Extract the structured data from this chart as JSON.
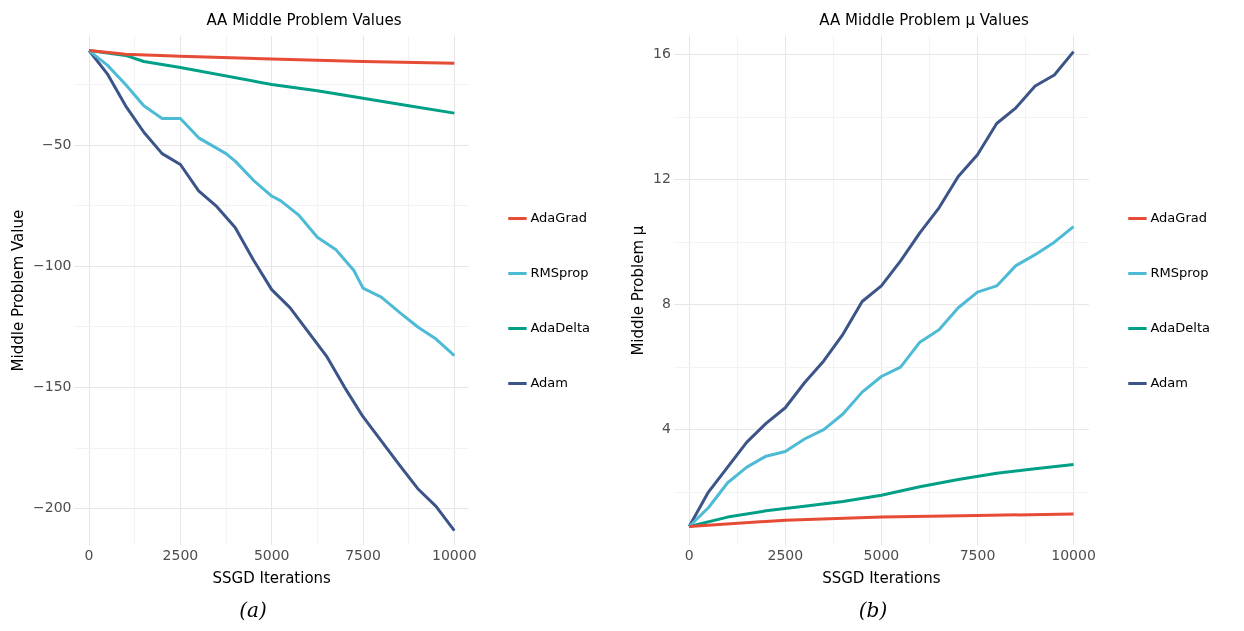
{
  "chart_data": [
    {
      "type": "line",
      "title": "AA Middle Problem Values",
      "xlabel": "SSGD Iterations",
      "ylabel": "Middle Problem Value",
      "annotations": [
        "(a)"
      ],
      "legend": "right",
      "grid": true,
      "xlim": [
        -400,
        10400
      ],
      "xticks": [
        0,
        {
          "value": 1250,
          "label": null
        },
        2500,
        {
          "value": 3750,
          "label": null
        },
        5000,
        {
          "value": 6250,
          "label": null
        },
        7500,
        {
          "value": 8750,
          "label": null
        },
        10000
      ],
      "ylim": [
        -215,
        -5
      ],
      "yticks": [
        {
          "value": -200,
          "label": "−200"
        },
        {
          "value": -175,
          "label": null
        },
        {
          "value": -150,
          "label": "−150"
        },
        {
          "value": -125,
          "label": null
        },
        {
          "value": -100,
          "label": "−100"
        },
        {
          "value": -75,
          "label": null
        },
        {
          "value": -50,
          "label": "−50"
        },
        {
          "value": -25,
          "label": null
        }
      ],
      "series": [
        {
          "name": "AdaGrad",
          "color": "#e64b35",
          "x": [
            0,
            1000,
            2500,
            5000,
            7500,
            10000
          ],
          "values": [
            -11,
            -12.5,
            -13.3,
            -14.5,
            -15.5,
            -16.2
          ]
        },
        {
          "name": "RMSprop",
          "color": "#4dbbd5",
          "x": [
            0,
            500,
            1000,
            1500,
            2000,
            2500,
            3000,
            3750,
            4000,
            4500,
            5000,
            5250,
            5750,
            6250,
            6750,
            7250,
            7500,
            8000,
            8500,
            9000,
            9500,
            10000
          ],
          "values": [
            -11,
            -17,
            -25,
            -33.8,
            -39,
            -39,
            -47,
            -53.5,
            -56.6,
            -64.5,
            -71,
            -73,
            -79,
            -88,
            -93,
            -101.7,
            -109,
            -112.7,
            -119,
            -125,
            -130,
            -136.8
          ]
        },
        {
          "name": "AdaDelta",
          "color": "#00a087",
          "x": [
            0,
            1000,
            1500,
            2500,
            5000,
            6250,
            7500,
            8750,
            10000
          ],
          "values": [
            -11,
            -13,
            -15.5,
            -18,
            -25,
            -27.6,
            -30.7,
            -33.8,
            -36.8
          ]
        },
        {
          "name": "Adam",
          "color": "#3c5488",
          "x": [
            0,
            500,
            1000,
            1500,
            2000,
            2500,
            3000,
            3500,
            4000,
            4500,
            5000,
            5500,
            6000,
            6500,
            7000,
            7500,
            8000,
            8500,
            9000,
            9500,
            10000
          ],
          "values": [
            -11,
            -20.6,
            -33.8,
            -44.7,
            -53.5,
            -58,
            -68.9,
            -75.4,
            -84,
            -97.4,
            -109.6,
            -117,
            -127,
            -137,
            -150,
            -162,
            -172,
            -182,
            -191.7,
            -199,
            -209
          ]
        }
      ]
    },
    {
      "type": "line",
      "title": "AA Middle Problem μ Values",
      "xlabel": "SSGD Iterations",
      "ylabel": "Middle Problem μ",
      "annotations": [
        "(b)"
      ],
      "legend": "right",
      "grid": true,
      "xlim": [
        -400,
        10400
      ],
      "xticks": [
        0,
        {
          "value": 1250,
          "label": null
        },
        2500,
        {
          "value": 3750,
          "label": null
        },
        5000,
        {
          "value": 6250,
          "label": null
        },
        7500,
        {
          "value": 8750,
          "label": null
        },
        10000
      ],
      "ylim": [
        0.3,
        16.6
      ],
      "yticks": [
        {
          "value": 2,
          "label": null
        },
        4,
        {
          "value": 6,
          "label": null
        },
        8,
        {
          "value": 10,
          "label": null
        },
        12,
        {
          "value": 14,
          "label": null
        },
        16
      ],
      "series": [
        {
          "name": "AdaGrad",
          "color": "#e64b35",
          "x": [
            0,
            2500,
            5000,
            7500,
            10000
          ],
          "values": [
            0.9,
            1.1,
            1.2,
            1.25,
            1.3
          ]
        },
        {
          "name": "RMSprop",
          "color": "#4dbbd5",
          "x": [
            0,
            500,
            1000,
            1500,
            2000,
            2500,
            3000,
            3500,
            4000,
            4500,
            5000,
            5500,
            6000,
            6500,
            7000,
            7500,
            8000,
            8500,
            9000,
            9500,
            10000
          ],
          "values": [
            0.9,
            1.5,
            2.3,
            2.8,
            3.15,
            3.3,
            3.7,
            4.0,
            4.5,
            5.2,
            5.7,
            6.0,
            6.8,
            7.2,
            7.9,
            8.4,
            8.6,
            9.25,
            9.6,
            10.0,
            10.5
          ]
        },
        {
          "name": "AdaDelta",
          "color": "#00a087",
          "x": [
            0,
            1000,
            2000,
            3000,
            4000,
            5000,
            6000,
            7000,
            8000,
            9000,
            10000
          ],
          "values": [
            0.9,
            1.2,
            1.4,
            1.55,
            1.7,
            1.9,
            2.17,
            2.4,
            2.6,
            2.75,
            2.88
          ]
        },
        {
          "name": "Adam",
          "color": "#3c5488",
          "x": [
            0,
            500,
            1000,
            1500,
            2000,
            2500,
            3000,
            3500,
            4000,
            4500,
            5000,
            5500,
            6000,
            6500,
            7000,
            7500,
            8000,
            8500,
            9000,
            9500,
            10000
          ],
          "values": [
            0.9,
            2.0,
            2.8,
            3.6,
            4.2,
            4.7,
            5.5,
            6.2,
            7.05,
            8.1,
            8.6,
            9.4,
            10.3,
            11.1,
            12.1,
            12.8,
            13.8,
            14.3,
            15.0,
            15.35,
            16.1
          ]
        }
      ]
    }
  ]
}
